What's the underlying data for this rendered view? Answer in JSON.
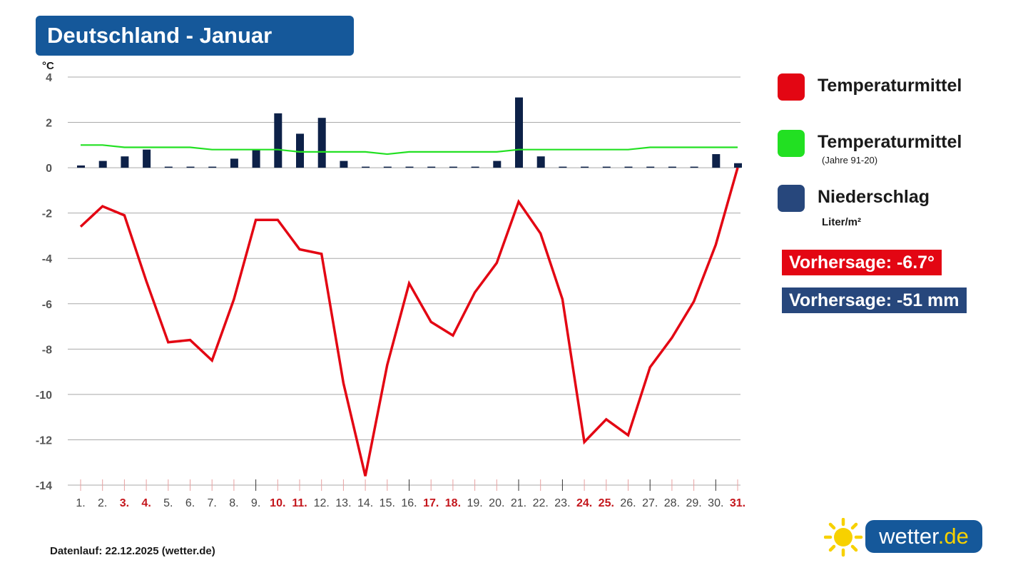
{
  "title": "Deutschland - Januar",
  "colors": {
    "title_bg": "#15589a",
    "temperature": "#e30613",
    "climate": "#22e022",
    "precipitation": "#0d2148",
    "legend_precip_swatch": "#27477c",
    "forecast_temp_bg": "#e30613",
    "forecast_precip_bg": "#27477c",
    "weekend_label": "#c4161c"
  },
  "legend": {
    "temp": {
      "label": "Temperaturmittel"
    },
    "climate": {
      "label": "Temperaturmittel",
      "sub": "(Jahre 91-20)"
    },
    "precip": {
      "label": "Niederschlag",
      "sub": "Liter/m²"
    }
  },
  "forecast": {
    "temp": "Vorhersage: -6.7°",
    "precip": "Vorhersage: -51 mm"
  },
  "footer": "Datenlauf: 22.12.2025 (wetter.de)",
  "logo": {
    "name": "wetter",
    "tld": ".de",
    "icon": "sun-icon"
  },
  "chart_data": {
    "type": "line",
    "yunit": "°C",
    "ylim": [
      -14,
      4
    ],
    "yticks": [
      4,
      2,
      0,
      -2,
      -4,
      -6,
      -8,
      -10,
      -12,
      -14
    ],
    "grid": true,
    "categories": [
      "1.",
      "2.",
      "3.",
      "4.",
      "5.",
      "6.",
      "7.",
      "8.",
      "9.",
      "10.",
      "11.",
      "12.",
      "13.",
      "14.",
      "15.",
      "16.",
      "17.",
      "18.",
      "19.",
      "20.",
      "21.",
      "22.",
      "23.",
      "24.",
      "25.",
      "26.",
      "27.",
      "28.",
      "29.",
      "30.",
      "31."
    ],
    "weekend_categories": [
      "3.",
      "4.",
      "10.",
      "11.",
      "17.",
      "18.",
      "24.",
      "25.",
      "31."
    ],
    "series": [
      {
        "name": "Temperaturmittel",
        "type": "line",
        "color": "#e30613",
        "values": [
          -2.6,
          -1.7,
          -2.1,
          -5.0,
          -7.7,
          -7.6,
          -8.5,
          -5.8,
          -2.3,
          -2.3,
          -3.6,
          -3.8,
          -9.5,
          -13.6,
          -8.7,
          -5.1,
          -6.8,
          -7.4,
          -5.5,
          -4.2,
          -1.5,
          -2.9,
          -5.8,
          -12.1,
          -11.1,
          -11.8,
          -8.8,
          -7.5,
          -5.9,
          -3.4,
          0.0
        ]
      },
      {
        "name": "Temperaturmittel (Jahre 91-20)",
        "type": "line",
        "color": "#22e022",
        "values": [
          1.0,
          1.0,
          0.9,
          0.9,
          0.9,
          0.9,
          0.8,
          0.8,
          0.8,
          0.8,
          0.7,
          0.7,
          0.7,
          0.7,
          0.6,
          0.7,
          0.7,
          0.7,
          0.7,
          0.7,
          0.8,
          0.8,
          0.8,
          0.8,
          0.8,
          0.8,
          0.9,
          0.9,
          0.9,
          0.9,
          0.9
        ]
      },
      {
        "name": "Niederschlag",
        "type": "bar",
        "color": "#0d2148",
        "values": [
          0.1,
          0.3,
          0.5,
          0.8,
          0,
          0,
          0,
          0.4,
          0.8,
          2.4,
          1.5,
          2.2,
          0.3,
          0,
          0,
          0,
          0,
          0,
          0,
          0.3,
          3.1,
          0.5,
          0,
          0,
          0,
          0,
          0,
          0,
          0,
          0.6,
          0.2
        ]
      }
    ]
  }
}
